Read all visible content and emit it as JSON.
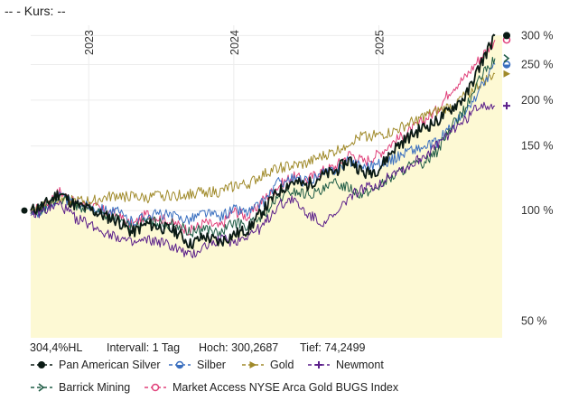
{
  "header": {
    "prefix": "--",
    "label": "- Kurs:",
    "value": "--"
  },
  "stats": {
    "perf": "304,4%HL",
    "interval": "Intervall: 1 Tag",
    "high": "Hoch: 300,2687",
    "low": "Tief: 74,2499"
  },
  "chart_data": {
    "type": "line",
    "title": "",
    "y_scale": "log",
    "ylim": [
      45,
      320
    ],
    "y_ticks": [
      {
        "value": 300,
        "label": "300 %"
      },
      {
        "value": 250,
        "label": "250 %"
      },
      {
        "value": 200,
        "label": "200 %"
      },
      {
        "value": 150,
        "label": "150 %"
      },
      {
        "value": 100,
        "label": "100 %"
      },
      {
        "value": 50,
        "label": "50 %"
      }
    ],
    "xlim": [
      2022.6,
      2025.85
    ],
    "x_ticks": [
      {
        "value": 2023,
        "label": "2023"
      },
      {
        "value": 2024,
        "label": "2024"
      },
      {
        "value": 2025,
        "label": "2025"
      }
    ],
    "series": [
      {
        "name": "Market Access NYSE Arca Gold BUGS Index",
        "color": "#e0407a",
        "marker": "circle-open",
        "end_value": 292,
        "x": [
          2022.6,
          2022.7,
          2022.8,
          2022.9,
          2023.0,
          2023.1,
          2023.2,
          2023.3,
          2023.4,
          2023.5,
          2023.6,
          2023.7,
          2023.8,
          2023.9,
          2024.0,
          2024.1,
          2024.2,
          2024.3,
          2024.4,
          2024.5,
          2024.6,
          2024.7,
          2024.8,
          2024.9,
          2025.0,
          2025.1,
          2025.2,
          2025.3,
          2025.4,
          2025.5,
          2025.6,
          2025.7,
          2025.8
        ],
        "values": [
          99,
          104,
          113,
          105,
          104,
          100,
          97,
          91,
          98,
          95,
          92,
          88,
          93,
          90,
          100,
          96,
          107,
          116,
          124,
          121,
          128,
          132,
          143,
          136,
          143,
          154,
          163,
          175,
          188,
          215,
          232,
          262,
          292
        ]
      },
      {
        "name": "Gold",
        "color": "#a08a2a",
        "marker": "triangle-right",
        "end_value": 236,
        "x": [
          2022.6,
          2022.7,
          2022.8,
          2022.9,
          2023.0,
          2023.1,
          2023.2,
          2023.3,
          2023.4,
          2023.5,
          2023.6,
          2023.7,
          2023.8,
          2023.9,
          2024.0,
          2024.1,
          2024.2,
          2024.3,
          2024.4,
          2024.5,
          2024.6,
          2024.7,
          2024.8,
          2024.9,
          2025.0,
          2025.1,
          2025.2,
          2025.3,
          2025.4,
          2025.5,
          2025.6,
          2025.7,
          2025.8
        ],
        "values": [
          100,
          104,
          109,
          106,
          106,
          108,
          110,
          109,
          108,
          110,
          110,
          111,
          113,
          112,
          117,
          118,
          125,
          131,
          132,
          134,
          140,
          145,
          154,
          160,
          160,
          164,
          172,
          180,
          186,
          193,
          206,
          222,
          236
        ]
      },
      {
        "name": "Silber",
        "color": "#3a6fbf",
        "marker": "circle-half",
        "end_value": 250,
        "x": [
          2022.6,
          2022.7,
          2022.8,
          2022.9,
          2023.0,
          2023.1,
          2023.2,
          2023.3,
          2023.4,
          2023.5,
          2023.6,
          2023.7,
          2023.8,
          2023.9,
          2024.0,
          2024.1,
          2024.2,
          2024.3,
          2024.4,
          2024.5,
          2024.6,
          2024.7,
          2024.8,
          2024.9,
          2025.0,
          2025.1,
          2025.2,
          2025.3,
          2025.4,
          2025.5,
          2025.6,
          2025.7,
          2025.8
        ],
        "values": [
          98,
          100,
          110,
          104,
          103,
          101,
          99,
          93,
          97,
          98,
          96,
          95,
          99,
          96,
          101,
          99,
          105,
          119,
          122,
          120,
          125,
          130,
          137,
          132,
          134,
          138,
          146,
          148,
          153,
          170,
          184,
          215,
          250
        ]
      },
      {
        "name": "Barrick Mining",
        "color": "#1f5c45",
        "marker": "arrow-right",
        "end_value": 260,
        "x": [
          2022.6,
          2022.7,
          2022.8,
          2022.9,
          2023.0,
          2023.1,
          2023.2,
          2023.3,
          2023.4,
          2023.5,
          2023.6,
          2023.7,
          2023.8,
          2023.9,
          2024.0,
          2024.1,
          2024.2,
          2024.3,
          2024.4,
          2024.5,
          2024.6,
          2024.7,
          2024.8,
          2024.9,
          2025.0,
          2025.1,
          2025.2,
          2025.3,
          2025.4,
          2025.5,
          2025.6,
          2025.7,
          2025.8
        ],
        "values": [
          98,
          102,
          108,
          103,
          102,
          98,
          95,
          89,
          94,
          92,
          92,
          87,
          90,
          86,
          93,
          91,
          97,
          107,
          113,
          111,
          112,
          119,
          116,
          110,
          117,
          124,
          132,
          135,
          145,
          170,
          190,
          230,
          260
        ]
      },
      {
        "name": "Newmont",
        "color": "#5b1f8a",
        "marker": "cross",
        "end_value": 193,
        "x": [
          2022.6,
          2022.7,
          2022.8,
          2022.9,
          2023.0,
          2023.1,
          2023.2,
          2023.3,
          2023.4,
          2023.5,
          2023.6,
          2023.7,
          2023.8,
          2023.9,
          2024.0,
          2024.1,
          2024.2,
          2024.3,
          2024.4,
          2024.5,
          2024.6,
          2024.7,
          2024.8,
          2024.9,
          2025.0,
          2025.1,
          2025.2,
          2025.3,
          2025.4,
          2025.5,
          2025.6,
          2025.7,
          2025.8
        ],
        "values": [
          97,
          100,
          104,
          96,
          92,
          88,
          85,
          81,
          83,
          82,
          79,
          75,
          80,
          84,
          82,
          86,
          90,
          103,
          108,
          98,
          93,
          96,
          110,
          115,
          118,
          128,
          131,
          140,
          150,
          165,
          178,
          195,
          193
        ]
      },
      {
        "name": "Pan American Silver",
        "color": "#0a1a14",
        "marker": "circle-filled",
        "end_value": 300,
        "fill": "#fdf9d4",
        "x": [
          2022.6,
          2022.7,
          2022.8,
          2022.9,
          2023.0,
          2023.1,
          2023.2,
          2023.3,
          2023.4,
          2023.5,
          2023.6,
          2023.7,
          2023.8,
          2023.9,
          2024.0,
          2024.1,
          2024.2,
          2024.3,
          2024.4,
          2024.5,
          2024.6,
          2024.7,
          2024.8,
          2024.9,
          2025.0,
          2025.1,
          2025.2,
          2025.3,
          2025.4,
          2025.5,
          2025.6,
          2025.7,
          2025.8
        ],
        "values": [
          100,
          104,
          112,
          104,
          101,
          97,
          94,
          87,
          92,
          90,
          88,
          81,
          85,
          82,
          86,
          89,
          100,
          112,
          120,
          117,
          124,
          128,
          138,
          126,
          130,
          147,
          158,
          168,
          175,
          190,
          205,
          250,
          300
        ]
      }
    ],
    "start_value": 100,
    "legend": [
      {
        "name": "Pan American Silver",
        "color": "#0a1a14",
        "marker": "circle-filled"
      },
      {
        "name": "Silber",
        "color": "#3a6fbf",
        "marker": "circle-half"
      },
      {
        "name": "Gold",
        "color": "#a08a2a",
        "marker": "triangle-right"
      },
      {
        "name": "Newmont",
        "color": "#5b1f8a",
        "marker": "cross"
      },
      {
        "name": "Barrick Mining",
        "color": "#1f5c45",
        "marker": "arrow-right"
      },
      {
        "name": "Market Access NYSE Arca Gold BUGS Index",
        "color": "#e0407a",
        "marker": "circle-open"
      }
    ]
  }
}
